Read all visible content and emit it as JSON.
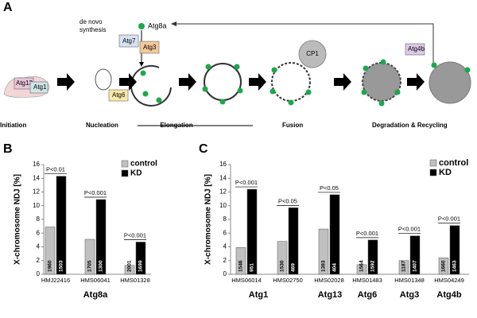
{
  "diagram": {
    "panel": "A",
    "de_novo": "de novo",
    "synthesis": "synthesis",
    "proteins": {
      "atg8a": "Atg8a",
      "atg7": "Atg7",
      "atg3": "Atg3",
      "atg13": "Atg13",
      "atg1": "Atg1",
      "atg6": "Atg6",
      "cp1": "CP1",
      "atg4b": "Atg4b"
    },
    "stages": [
      "Initiation",
      "Nucleation",
      "Elongation",
      "Fusion",
      "Degradation & Recycling"
    ]
  },
  "chart_data": [
    {
      "type": "bar",
      "panel": "B",
      "ylabel": "X-chromosome NDJ [%]",
      "categories": [
        "HMJ22416",
        "HMS06041",
        "HMS01328"
      ],
      "groups": [
        "Atg8a"
      ],
      "series": [
        {
          "name": "control",
          "color": "#c0c0c0",
          "values": [
            6.9,
            5.1,
            1.3
          ],
          "n": [
            "1960",
            "1705",
            "2001"
          ]
        },
        {
          "name": "KD",
          "color": "#000000",
          "values": [
            14.3,
            10.9,
            4.7
          ],
          "n": [
            "1503",
            "1300",
            "1699"
          ]
        }
      ],
      "pvalues": [
        "P<0.01",
        "P<0.001",
        "P<0.001"
      ],
      "ylim": [
        0,
        16
      ],
      "yticks": [
        0,
        2,
        4,
        6,
        8,
        10,
        12,
        14,
        16
      ]
    },
    {
      "type": "bar",
      "panel": "C",
      "ylabel": "X-chromosome NDJ [%]",
      "categories": [
        "HMS06014",
        "HMS02750",
        "HMS02028",
        "HMS01483",
        "HMS01348",
        "HMS04249"
      ],
      "groups": [
        "Atg1",
        "Atg13",
        "Atg6",
        "Atg3",
        "Atg4b"
      ],
      "series": [
        {
          "name": "control",
          "color": "#c0c0c0",
          "values": [
            3.9,
            4.8,
            6.6,
            1.4,
            2.0,
            2.4
          ],
          "n": [
            "1546",
            "1530",
            "1383",
            "1564",
            "1187",
            "1660"
          ]
        },
        {
          "name": "KD",
          "color": "#000000",
          "values": [
            12.4,
            9.7,
            11.6,
            5.0,
            5.6,
            7.1
          ],
          "n": [
            "951",
            "469",
            "404",
            "1592",
            "1407",
            "1463"
          ]
        }
      ],
      "pvalues": [
        "P<0.001",
        "P<0.05",
        "P<0.05",
        "P<0.001",
        "P<0.001",
        "P<0.001"
      ],
      "ylim": [
        0,
        16
      ],
      "yticks": [
        0,
        2,
        4,
        6,
        8,
        10,
        12,
        14,
        16
      ]
    }
  ]
}
